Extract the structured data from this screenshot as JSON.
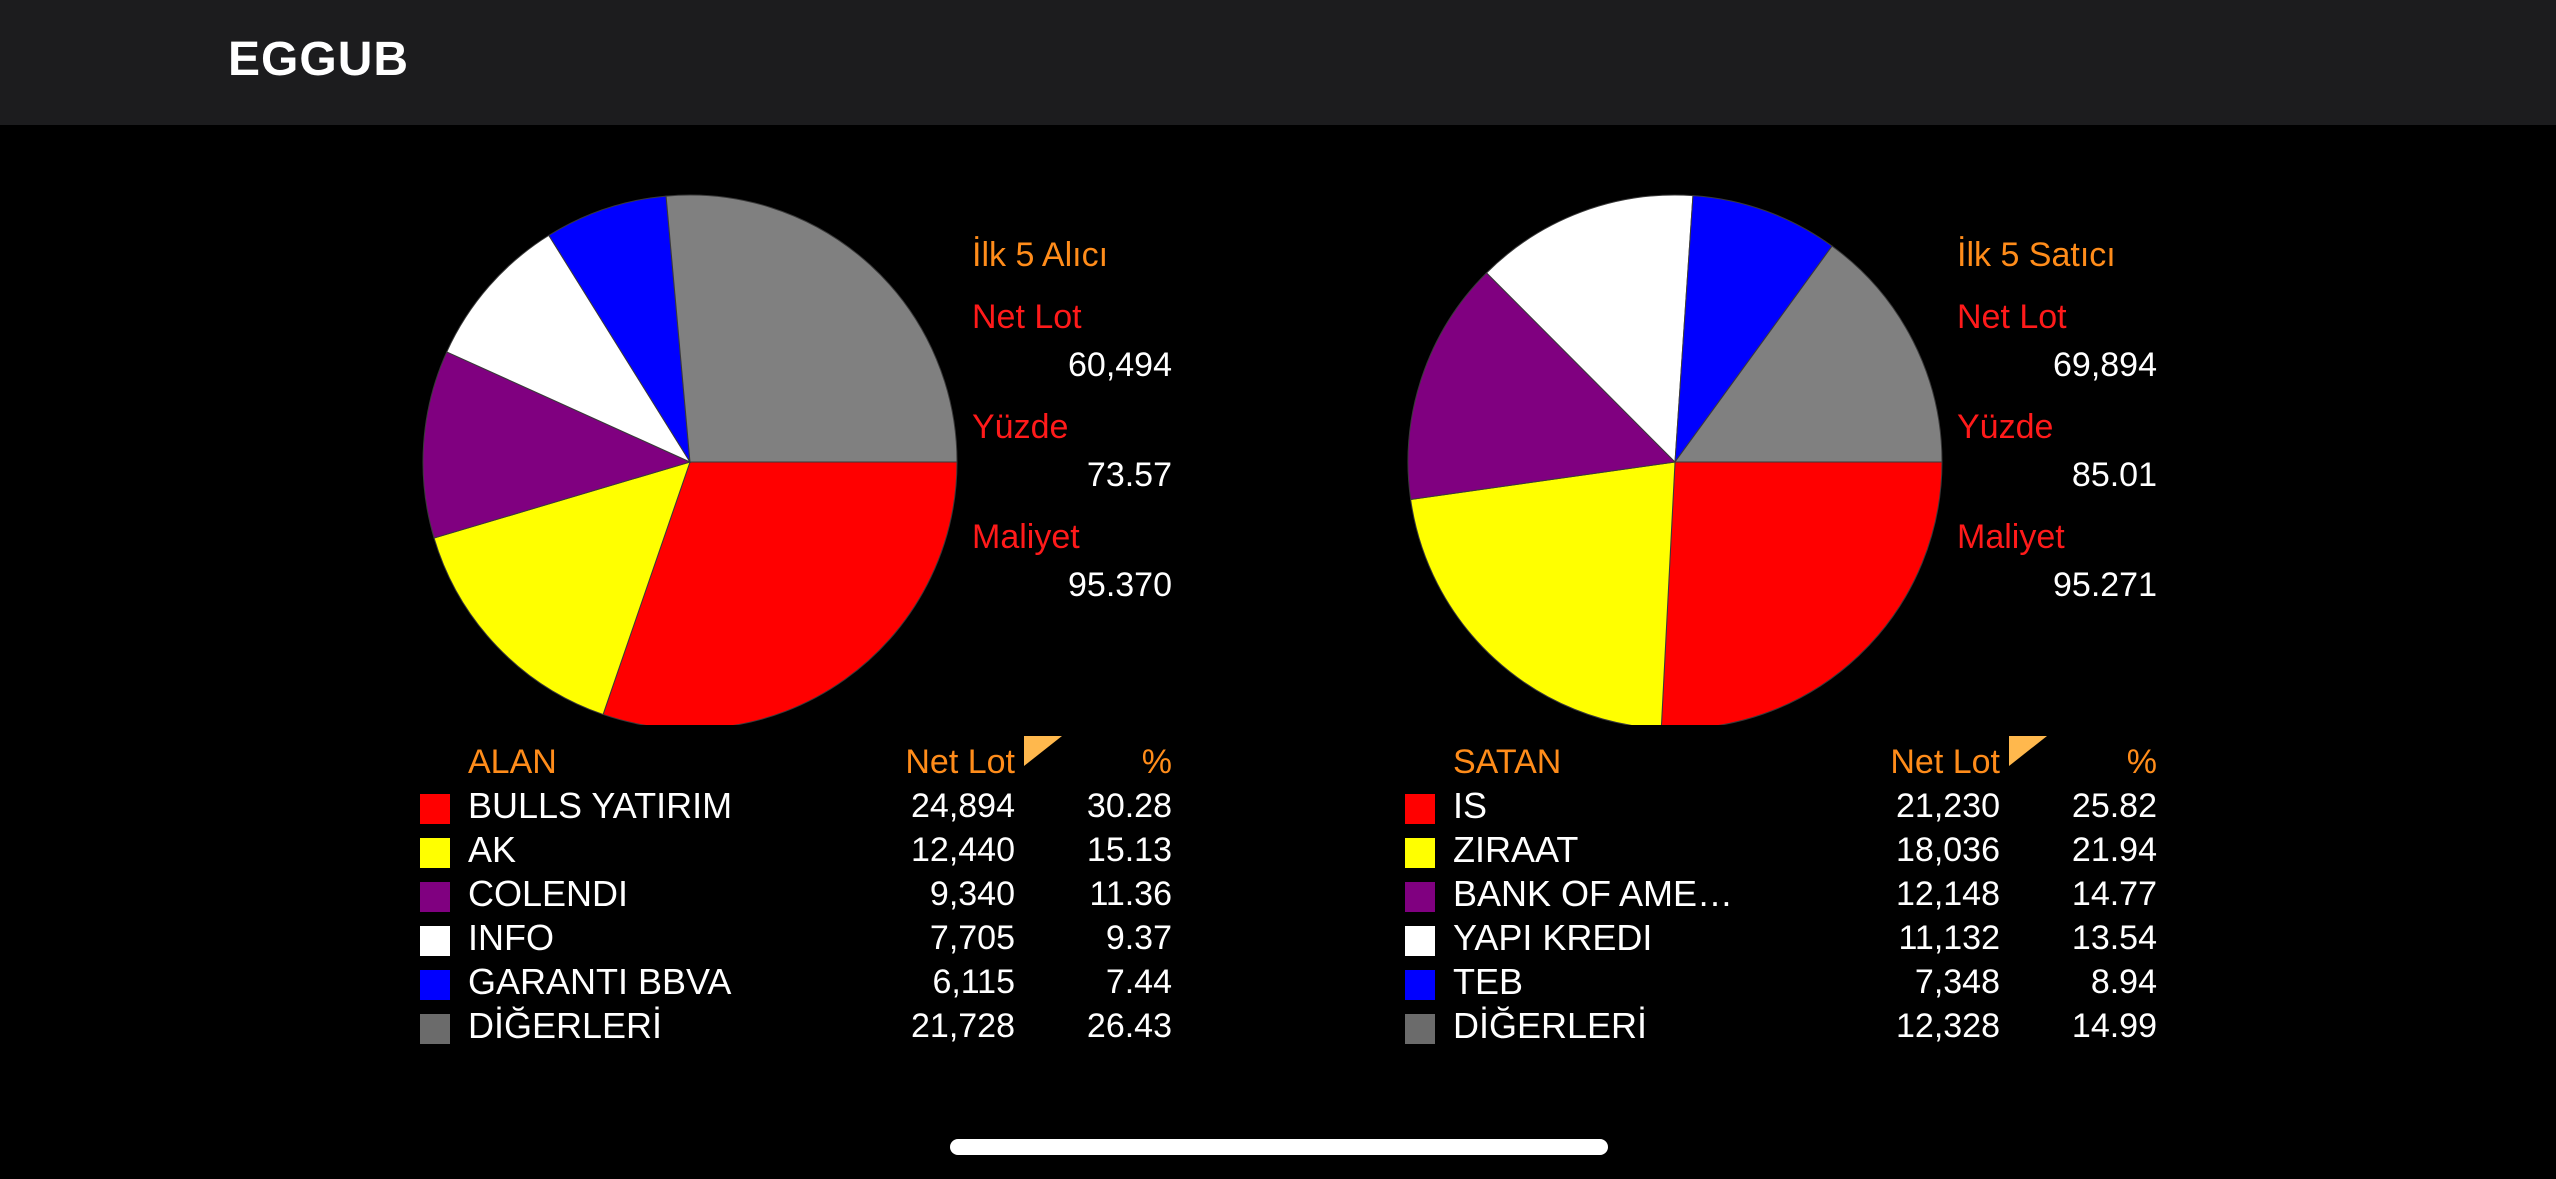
{
  "header": {
    "symbol": "EGGUB"
  },
  "colors": {
    "accent": "#ff8c1a",
    "label": "#ff1a1a",
    "value": "#ffffff",
    "background": "#000000",
    "topbar": "#1c1c1e"
  },
  "left": {
    "summary": {
      "title": "İlk 5 Alıcı",
      "net_lot_label": "Net Lot",
      "net_lot": "60,494",
      "pct_label": "Yüzde",
      "pct": "73.57",
      "cost_label": "Maliyet",
      "cost": "95.370"
    },
    "table": {
      "headers": {
        "name": "ALAN",
        "net_lot": "Net Lot",
        "pct": "%"
      },
      "rows": [
        {
          "name": "BULLS YATIRIM",
          "net_lot": "24,894",
          "pct": "30.28",
          "color": "#ff0000"
        },
        {
          "name": "AK",
          "net_lot": "12,440",
          "pct": "15.13",
          "color": "#ffff00"
        },
        {
          "name": "COLENDI",
          "net_lot": "9,340",
          "pct": "11.36",
          "color": "#800080"
        },
        {
          "name": "INFO",
          "net_lot": "7,705",
          "pct": "9.37",
          "color": "#ffffff"
        },
        {
          "name": "GARANTI BBVA",
          "net_lot": "6,115",
          "pct": "7.44",
          "color": "#0000ff"
        },
        {
          "name": "DİĞERLERİ",
          "net_lot": "21,728",
          "pct": "26.43",
          "color": "#808080"
        }
      ]
    }
  },
  "right": {
    "summary": {
      "title": "İlk 5 Satıcı",
      "net_lot_label": "Net Lot",
      "net_lot": "69,894",
      "pct_label": "Yüzde",
      "pct": "85.01",
      "cost_label": "Maliyet",
      "cost": "95.271"
    },
    "table": {
      "headers": {
        "name": "SATAN",
        "net_lot": "Net Lot",
        "pct": "%"
      },
      "rows": [
        {
          "name": "IS",
          "net_lot": "21,230",
          "pct": "25.82",
          "color": "#ff0000"
        },
        {
          "name": "ZIRAAT",
          "net_lot": "18,036",
          "pct": "21.94",
          "color": "#ffff00"
        },
        {
          "name": "BANK OF AME…",
          "net_lot": "12,148",
          "pct": "14.77",
          "color": "#800080"
        },
        {
          "name": "YAPI KREDI",
          "net_lot": "11,132",
          "pct": "13.54",
          "color": "#ffffff"
        },
        {
          "name": "TEB",
          "net_lot": "7,348",
          "pct": "8.94",
          "color": "#0000ff"
        },
        {
          "name": "DİĞERLERİ",
          "net_lot": "12,328",
          "pct": "14.99",
          "color": "#808080"
        }
      ]
    }
  },
  "chart_data": [
    {
      "type": "pie",
      "categories": [
        "BULLS YATIRIM",
        "AK",
        "COLENDI",
        "INFO",
        "GARANTI BBVA",
        "DİĞERLERİ"
      ],
      "values": [
        30.28,
        15.13,
        11.36,
        9.37,
        7.44,
        26.43
      ],
      "colors": [
        "#ff0000",
        "#ffff00",
        "#800080",
        "#ffffff",
        "#0000ff",
        "#808080"
      ],
      "start": "3 o'clock, clockwise"
    },
    {
      "type": "pie",
      "categories": [
        "IS",
        "ZIRAAT",
        "BANK OF AME…",
        "YAPI KREDI",
        "TEB",
        "DİĞERLERİ"
      ],
      "values": [
        25.82,
        21.94,
        14.77,
        13.54,
        8.94,
        14.99
      ],
      "colors": [
        "#ff0000",
        "#ffff00",
        "#800080",
        "#ffffff",
        "#0000ff",
        "#808080"
      ],
      "start": "3 o'clock, clockwise"
    }
  ]
}
